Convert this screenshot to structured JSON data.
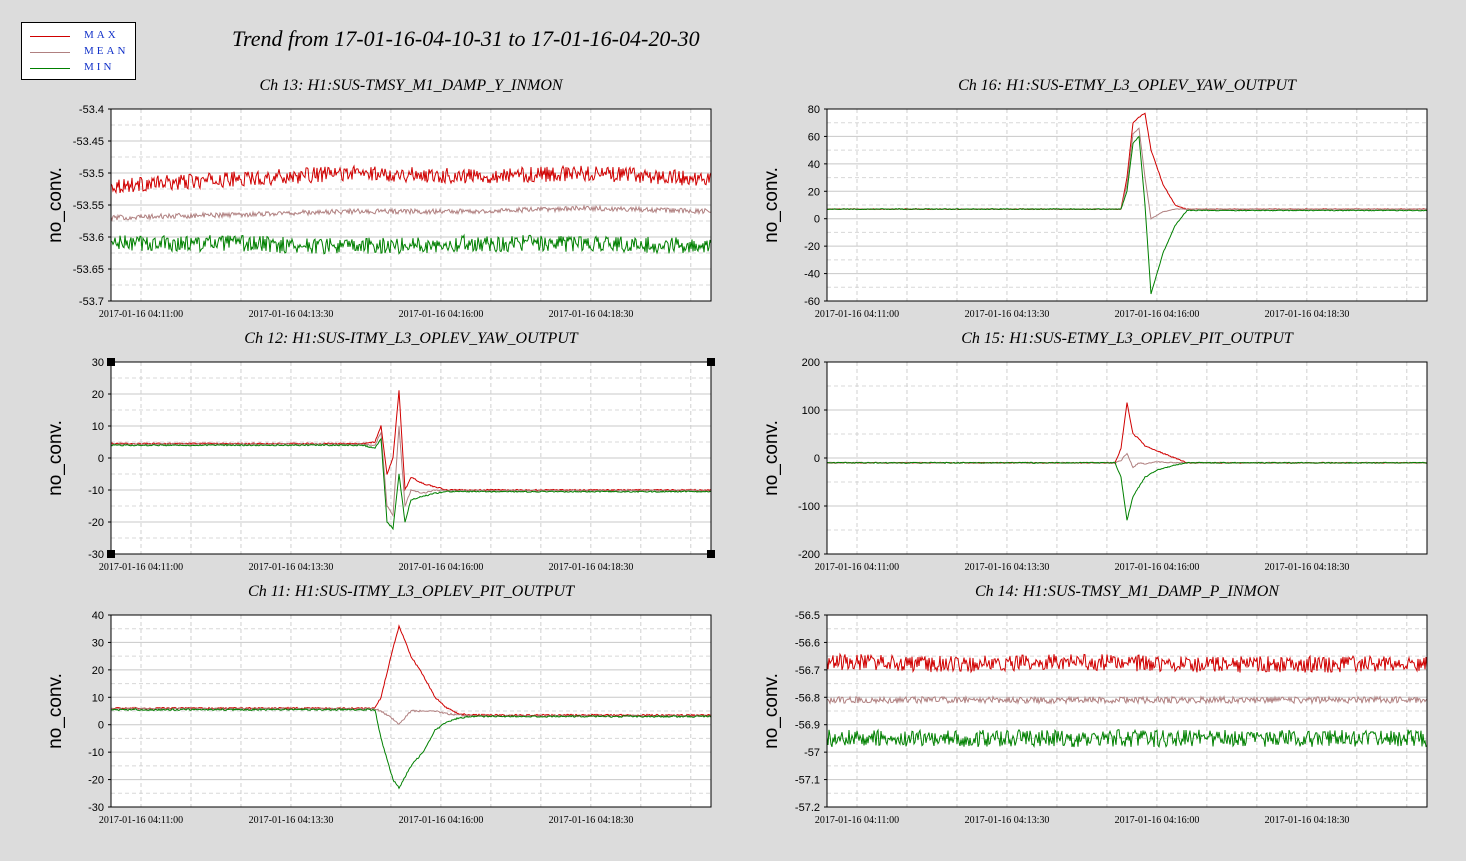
{
  "title": "Trend from 17-01-16-04-10-31 to 17-01-16-04-20-30",
  "legend": [
    {
      "label": "MAX",
      "color": "#d00000"
    },
    {
      "label": "MEAN",
      "color": "#b08080"
    },
    {
      "label": "MIN",
      "color": "#008000"
    }
  ],
  "chart_data": [
    {
      "type": "line",
      "title": "Ch 13: H1:SUS-TMSY_M1_DAMP_Y_INMON",
      "ylabel": "no_conv.",
      "ylim": [
        -53.7,
        -53.4
      ],
      "yticks": [
        -53.4,
        -53.45,
        -53.5,
        -53.55,
        -53.6,
        -53.65,
        -53.7
      ],
      "ytick_labels": [
        "-53.4",
        "-53.45",
        "-53.5",
        "-53.55",
        "-53.6",
        "-53.65",
        "-53.7"
      ],
      "x_tick_labels": [
        "2017-01-16 04:11:00",
        "2017-01-16 04:13:30",
        "2017-01-16 04:16:00",
        "2017-01-16 04:18:30"
      ],
      "series": [
        {
          "name": "MAX",
          "color": "#d00000",
          "x": [
            0,
            20,
            40,
            60,
            80,
            100
          ],
          "y": [
            -53.52,
            -53.51,
            -53.5,
            -53.505,
            -53.5,
            -53.51
          ],
          "noise": 0.012
        },
        {
          "name": "MEAN",
          "color": "#b08080",
          "x": [
            0,
            20,
            40,
            60,
            80,
            100
          ],
          "y": [
            -53.57,
            -53.565,
            -53.56,
            -53.56,
            -53.555,
            -53.56
          ],
          "noise": 0.004
        },
        {
          "name": "MIN",
          "color": "#008000",
          "x": [
            0,
            20,
            40,
            60,
            80,
            100
          ],
          "y": [
            -53.61,
            -53.61,
            -53.615,
            -53.61,
            -53.61,
            -53.615
          ],
          "noise": 0.013
        }
      ]
    },
    {
      "type": "line",
      "title": "Ch 16: H1:SUS-ETMY_L3_OPLEV_YAW_OUTPUT",
      "ylabel": "no_conv.",
      "ylim": [
        -60,
        80
      ],
      "yticks": [
        80,
        60,
        40,
        20,
        0,
        -20,
        -40,
        -60
      ],
      "ytick_labels": [
        "80",
        "60",
        "40",
        "20",
        "0",
        "-20",
        "-40",
        "-60"
      ],
      "x_tick_labels": [
        "2017-01-16 04:11:00",
        "2017-01-16 04:13:30",
        "2017-01-16 04:16:00",
        "2017-01-16 04:18:30"
      ],
      "series": [
        {
          "name": "MAX",
          "color": "#d00000",
          "x": [
            0,
            47,
            49,
            50,
            51,
            52,
            53,
            54,
            56,
            58,
            60,
            100
          ],
          "y": [
            7,
            7,
            7,
            30,
            70,
            74,
            77,
            50,
            25,
            10,
            7,
            7
          ],
          "noise": 0.3
        },
        {
          "name": "MEAN",
          "color": "#b08080",
          "x": [
            0,
            47,
            49,
            50,
            51,
            52,
            53,
            54,
            56,
            58,
            60,
            100
          ],
          "y": [
            7,
            7,
            7,
            25,
            62,
            66,
            30,
            0,
            5,
            7,
            7,
            7
          ],
          "noise": 0.2
        },
        {
          "name": "MIN",
          "color": "#008000",
          "x": [
            0,
            47,
            49,
            50,
            51,
            52,
            53,
            54,
            56,
            58,
            60,
            100
          ],
          "y": [
            7,
            7,
            7,
            20,
            55,
            60,
            10,
            -55,
            -25,
            -5,
            6,
            6
          ],
          "noise": 0.3
        }
      ]
    },
    {
      "type": "line",
      "title": "Ch 12: H1:SUS-ITMY_L3_OPLEV_YAW_OUTPUT",
      "ylabel": "no_conv.",
      "ylim": [
        -30,
        30
      ],
      "yticks": [
        30,
        20,
        10,
        0,
        -10,
        -20,
        -30
      ],
      "ytick_labels": [
        "30",
        "20",
        "10",
        "0",
        "-10",
        "-20",
        "-30"
      ],
      "x_tick_labels": [
        "2017-01-16 04:11:00",
        "2017-01-16 04:13:30",
        "2017-01-16 04:16:00",
        "2017-01-16 04:18:30"
      ],
      "series": [
        {
          "name": "MAX",
          "color": "#d00000",
          "x": [
            0,
            42,
            44,
            45,
            46,
            47,
            48,
            49,
            50,
            52,
            54,
            56,
            100
          ],
          "y": [
            4.5,
            4.5,
            5,
            10,
            -5,
            0,
            21,
            -10,
            -6,
            -8,
            -9,
            -10,
            -10
          ],
          "noise": 0.2
        },
        {
          "name": "MEAN",
          "color": "#b08080",
          "x": [
            0,
            42,
            44,
            45,
            46,
            47,
            48,
            49,
            50,
            52,
            54,
            56,
            100
          ],
          "y": [
            4.3,
            4.3,
            4,
            8,
            -15,
            -18,
            10,
            -15,
            -10,
            -11,
            -10,
            -10.2,
            -10.2
          ],
          "noise": 0.2
        },
        {
          "name": "MIN",
          "color": "#008000",
          "x": [
            0,
            42,
            44,
            45,
            46,
            47,
            48,
            49,
            50,
            52,
            54,
            56,
            100
          ],
          "y": [
            4,
            4,
            3,
            6,
            -20,
            -22,
            -5,
            -20,
            -13,
            -12,
            -11,
            -10.5,
            -10.5
          ],
          "noise": 0.2
        }
      ]
    },
    {
      "type": "line",
      "title": "Ch 15: H1:SUS-ETMY_L3_OPLEV_PIT_OUTPUT",
      "ylabel": "no_conv.",
      "ylim": [
        -200,
        200
      ],
      "yticks": [
        200,
        100,
        0,
        -100,
        -200
      ],
      "ytick_labels": [
        "200",
        "100",
        "0",
        "-100",
        "-200"
      ],
      "x_tick_labels": [
        "2017-01-16 04:11:00",
        "2017-01-16 04:13:30",
        "2017-01-16 04:16:00",
        "2017-01-16 04:18:30"
      ],
      "series": [
        {
          "name": "MAX",
          "color": "#d00000",
          "x": [
            0,
            48,
            49,
            50,
            51,
            52,
            53,
            55,
            58,
            60,
            100
          ],
          "y": [
            -10,
            -10,
            20,
            115,
            50,
            40,
            25,
            15,
            0,
            -10,
            -10
          ],
          "noise": 1
        },
        {
          "name": "MEAN",
          "color": "#b08080",
          "x": [
            0,
            48,
            49,
            50,
            51,
            52,
            53,
            55,
            58,
            60,
            100
          ],
          "y": [
            -10,
            -10,
            -5,
            10,
            -20,
            -10,
            -12,
            -8,
            -10,
            -10,
            -10
          ],
          "noise": 1
        },
        {
          "name": "MIN",
          "color": "#008000",
          "x": [
            0,
            48,
            49,
            50,
            51,
            52,
            53,
            55,
            58,
            60,
            100
          ],
          "y": [
            -10,
            -10,
            -40,
            -130,
            -80,
            -60,
            -40,
            -25,
            -15,
            -10,
            -10
          ],
          "noise": 1
        }
      ]
    },
    {
      "type": "line",
      "title": "Ch 11: H1:SUS-ITMY_L3_OPLEV_PIT_OUTPUT",
      "ylabel": "no_conv.",
      "ylim": [
        -30,
        40
      ],
      "yticks": [
        40,
        30,
        20,
        10,
        0,
        -10,
        -20,
        -30
      ],
      "ytick_labels": [
        "40",
        "30",
        "20",
        "10",
        "0",
        "-10",
        "-20",
        "-30"
      ],
      "x_tick_labels": [
        "2017-01-16 04:11:00",
        "2017-01-16 04:13:30",
        "2017-01-16 04:16:00",
        "2017-01-16 04:18:30"
      ],
      "series": [
        {
          "name": "MAX",
          "color": "#d00000",
          "x": [
            0,
            44,
            45,
            47,
            48,
            50,
            52,
            54,
            56,
            58,
            60,
            100
          ],
          "y": [
            6,
            6,
            10,
            28,
            36,
            25,
            18,
            10,
            6,
            4,
            3.5,
            3.5
          ],
          "noise": 0.3
        },
        {
          "name": "MEAN",
          "color": "#b08080",
          "x": [
            0,
            44,
            45,
            47,
            48,
            50,
            52,
            54,
            56,
            58,
            60,
            100
          ],
          "y": [
            5.8,
            5.8,
            5,
            2,
            0,
            5,
            5,
            5,
            4,
            3.5,
            3.2,
            3.2
          ],
          "noise": 0.3
        },
        {
          "name": "MIN",
          "color": "#008000",
          "x": [
            0,
            44,
            45,
            47,
            48,
            50,
            52,
            54,
            56,
            58,
            60,
            100
          ],
          "y": [
            5.5,
            5.5,
            -5,
            -20,
            -23,
            -15,
            -10,
            -2,
            1,
            2.5,
            3,
            3
          ],
          "noise": 0.3
        }
      ]
    },
    {
      "type": "line",
      "title": "Ch 14: H1:SUS-TMSY_M1_DAMP_P_INMON",
      "ylabel": "no_conv.",
      "ylim": [
        -57.2,
        -56.5
      ],
      "yticks": [
        -56.5,
        -56.6,
        -56.7,
        -56.8,
        -56.9,
        -57,
        -57.1,
        -57.2
      ],
      "ytick_labels": [
        "-56.5",
        "-56.6",
        "-56.7",
        "-56.8",
        "-56.9",
        "-57",
        "-57.1",
        "-57.2"
      ],
      "x_tick_labels": [
        "2017-01-16 04:11:00",
        "2017-01-16 04:13:30",
        "2017-01-16 04:16:00",
        "2017-01-16 04:18:30"
      ],
      "series": [
        {
          "name": "MAX",
          "color": "#d00000",
          "x": [
            0,
            20,
            40,
            60,
            80,
            100
          ],
          "y": [
            -56.67,
            -56.68,
            -56.67,
            -56.68,
            -56.68,
            -56.68
          ],
          "noise": 0.03
        },
        {
          "name": "MEAN",
          "color": "#b08080",
          "x": [
            0,
            20,
            40,
            60,
            80,
            100
          ],
          "y": [
            -56.81,
            -56.81,
            -56.81,
            -56.81,
            -56.81,
            -56.81
          ],
          "noise": 0.012
        },
        {
          "name": "MIN",
          "color": "#008000",
          "x": [
            0,
            20,
            40,
            60,
            80,
            100
          ],
          "y": [
            -56.95,
            -56.95,
            -56.95,
            -56.95,
            -56.95,
            -56.95
          ],
          "noise": 0.032
        }
      ]
    }
  ]
}
